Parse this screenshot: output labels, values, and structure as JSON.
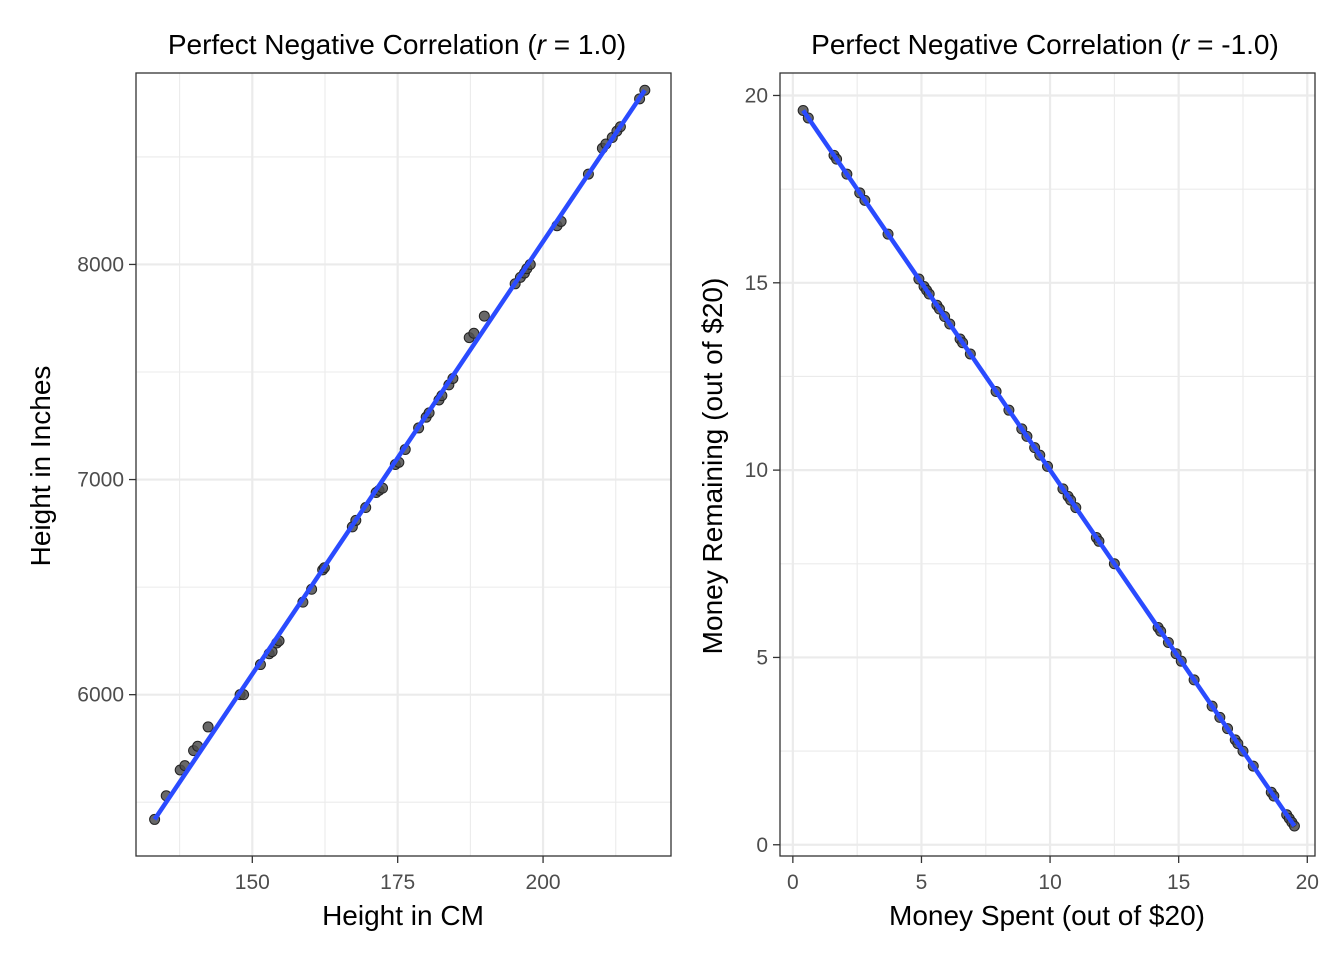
{
  "colors": {
    "background": "#ffffff",
    "panel_border": "#333333",
    "grid": "#ebebeb",
    "point": "#4d4d4d",
    "fit_line": "#2a4bff",
    "tick_text": "#4d4d4d"
  },
  "chart_data": [
    {
      "type": "scatter",
      "title_prefix": "Perfect Negative Correlation (",
      "title_italic": "r",
      "title_suffix": " = 1.0)",
      "xlabel": "Height in CM",
      "ylabel": "Height in Inches",
      "xlim": [
        130,
        222
      ],
      "ylim": [
        5250,
        8890
      ],
      "xticks": [
        150,
        175,
        200
      ],
      "yticks": [
        6000,
        7000,
        8000
      ],
      "grid": true,
      "fit_line": {
        "x": [
          133.2,
          217.5
        ],
        "y": [
          5420,
          8810
        ]
      },
      "points": {
        "x": [
          133.2,
          135.2,
          137.6,
          138.4,
          139.9,
          140.6,
          142.4,
          147.9,
          148.5,
          151.4,
          152.9,
          153.4,
          154.2,
          154.6,
          158.7,
          160.2,
          162.1,
          162.4,
          167.2,
          167.8,
          169.5,
          171.3,
          171.8,
          172.4,
          174.6,
          175.2,
          176.3,
          178.6,
          179.9,
          180.4,
          182.1,
          182.6,
          183.8,
          184.5,
          187.3,
          188.1,
          189.9,
          195.2,
          196.1,
          196.8,
          197.2,
          197.8,
          202.4,
          203.1,
          207.8,
          210.2,
          210.8,
          211.9,
          212.7,
          213.3,
          216.6,
          217.5
        ],
        "y": [
          5420,
          5530,
          5650,
          5670,
          5740,
          5760,
          5850,
          6000,
          6000,
          6140,
          6190,
          6200,
          6240,
          6250,
          6430,
          6490,
          6580,
          6590,
          6780,
          6810,
          6870,
          6940,
          6950,
          6960,
          7070,
          7080,
          7140,
          7240,
          7290,
          7310,
          7370,
          7390,
          7440,
          7470,
          7660,
          7680,
          7760,
          7910,
          7940,
          7960,
          7980,
          8000,
          8180,
          8200,
          8420,
          8540,
          8560,
          8590,
          8620,
          8640,
          8770,
          8810
        ]
      }
    },
    {
      "type": "scatter",
      "title_prefix": "Perfect Negative Correlation (",
      "title_italic": "r",
      "title_suffix": " = -1.0)",
      "xlabel": "Money Spent (out of $20)",
      "ylabel": "Money Remaining (out of $20)",
      "xlim": [
        -0.5,
        20.3
      ],
      "ylim": [
        -0.3,
        20.6
      ],
      "xticks": [
        0,
        5,
        10,
        15,
        20
      ],
      "yticks": [
        0,
        5,
        10,
        15,
        20
      ],
      "grid": true,
      "fit_line": {
        "x": [
          0.4,
          19.5
        ],
        "y": [
          19.6,
          0.5
        ]
      },
      "points": {
        "x": [
          0.4,
          0.6,
          1.6,
          1.7,
          2.1,
          2.6,
          2.8,
          3.7,
          4.9,
          5.1,
          5.2,
          5.3,
          5.6,
          5.7,
          5.9,
          6.1,
          6.5,
          6.6,
          6.9,
          7.9,
          8.4,
          8.9,
          9.1,
          9.4,
          9.6,
          9.9,
          10.5,
          10.7,
          10.8,
          11.0,
          11.8,
          11.9,
          12.5,
          14.2,
          14.3,
          14.6,
          14.9,
          15.1,
          15.6,
          16.3,
          16.6,
          16.9,
          17.2,
          17.3,
          17.5,
          17.9,
          18.6,
          18.7,
          19.2,
          19.3,
          19.4,
          19.5
        ],
        "y": [
          19.6,
          19.4,
          18.4,
          18.3,
          17.9,
          17.4,
          17.2,
          16.3,
          15.1,
          14.9,
          14.8,
          14.7,
          14.4,
          14.3,
          14.1,
          13.9,
          13.5,
          13.4,
          13.1,
          12.1,
          11.6,
          11.1,
          10.9,
          10.6,
          10.4,
          10.1,
          9.5,
          9.3,
          9.2,
          9.0,
          8.2,
          8.1,
          7.5,
          5.8,
          5.7,
          5.4,
          5.1,
          4.9,
          4.4,
          3.7,
          3.4,
          3.1,
          2.8,
          2.7,
          2.5,
          2.1,
          1.4,
          1.3,
          0.8,
          0.7,
          0.6,
          0.5
        ]
      }
    }
  ]
}
